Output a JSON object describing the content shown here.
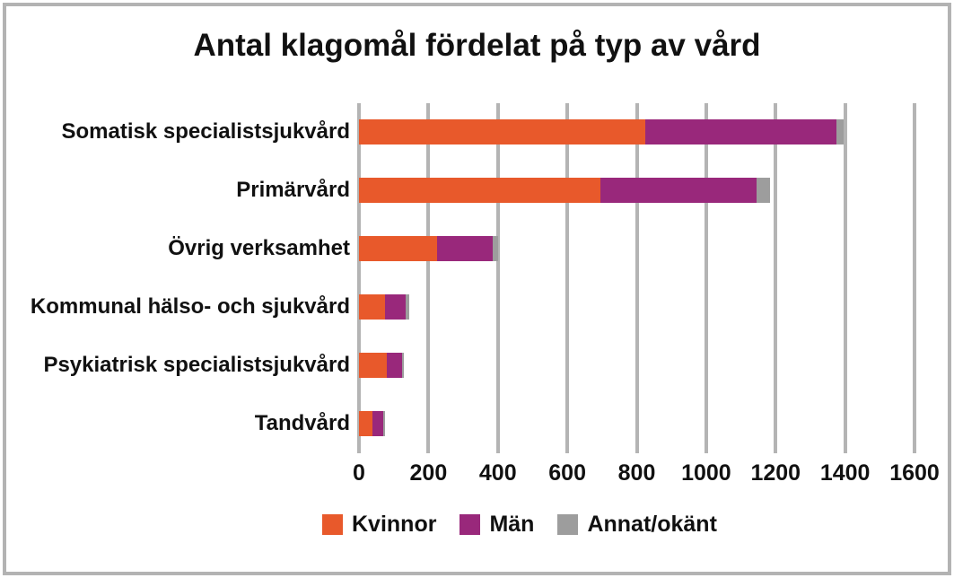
{
  "chart_data": {
    "type": "bar",
    "orientation": "horizontal",
    "stacked": true,
    "title": "Antal klagomål fördelat på typ av vård",
    "categories": [
      "Somatisk specialistsjukvård",
      "Primärvård",
      "Övrig verksamhet",
      "Kommunal hälso- och sjukvård",
      "Psykiatrisk specialistsjukvård",
      "Tandvård"
    ],
    "series": [
      {
        "name": "Kvinnor",
        "color": "#E8592B",
        "values": [
          825,
          695,
          225,
          75,
          80,
          40
        ]
      },
      {
        "name": "Män",
        "color": "#99287B",
        "values": [
          550,
          450,
          160,
          60,
          45,
          30
        ]
      },
      {
        "name": "Annat/okänt",
        "color": "#9D9D9D",
        "values": [
          20,
          40,
          15,
          10,
          5,
          5
        ]
      }
    ],
    "totals": [
      1395,
      1185,
      400,
      145,
      130,
      75
    ],
    "xlabel": "",
    "ylabel": "",
    "xlim": [
      0,
      1600
    ],
    "xticks": [
      0,
      200,
      400,
      600,
      800,
      1000,
      1200,
      1400,
      1600
    ],
    "grid": "vertical",
    "legend_position": "bottom",
    "colors": {
      "gridline": "#B4B4B4",
      "frame_border": "#B3B3B3",
      "text": "#111111",
      "background": "#FFFFFF"
    }
  }
}
